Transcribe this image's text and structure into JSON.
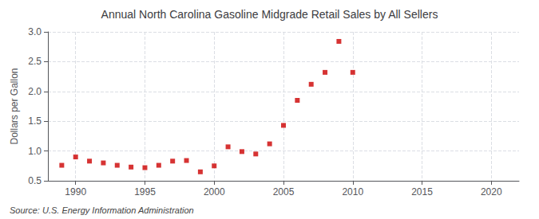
{
  "chart_data": {
    "type": "scatter",
    "title": "Annual North Carolina Gasoline Midgrade Retail Sales by All Sellers",
    "ylabel": "Dollars per Gallon",
    "source": "Source: U.S. Energy Information Administration",
    "x": [
      1989,
      1990,
      1991,
      1992,
      1993,
      1994,
      1995,
      1996,
      1997,
      1998,
      1999,
      2000,
      2001,
      2002,
      2003,
      2004,
      2005,
      2006,
      2007,
      2008,
      2009,
      2010
    ],
    "values": [
      0.76,
      0.9,
      0.83,
      0.8,
      0.76,
      0.73,
      0.72,
      0.76,
      0.83,
      0.84,
      0.65,
      0.75,
      1.07,
      0.99,
      0.95,
      1.12,
      1.43,
      1.85,
      2.12,
      2.32,
      2.84,
      2.32
    ],
    "color": "#cc0000",
    "marker": "square",
    "xlim": [
      1988,
      2022
    ],
    "xticks": [
      1990,
      1995,
      2000,
      2005,
      2010,
      2015,
      2020
    ],
    "ylim": [
      0.5,
      3.0
    ],
    "yticks": [
      0.5,
      {
        "value": 1.0,
        "label": "1.0"
      },
      1.5,
      {
        "value": 2.0,
        "label": "2.0"
      },
      2.5,
      {
        "value": 3.0,
        "label": "3.0"
      }
    ],
    "grid": true
  }
}
